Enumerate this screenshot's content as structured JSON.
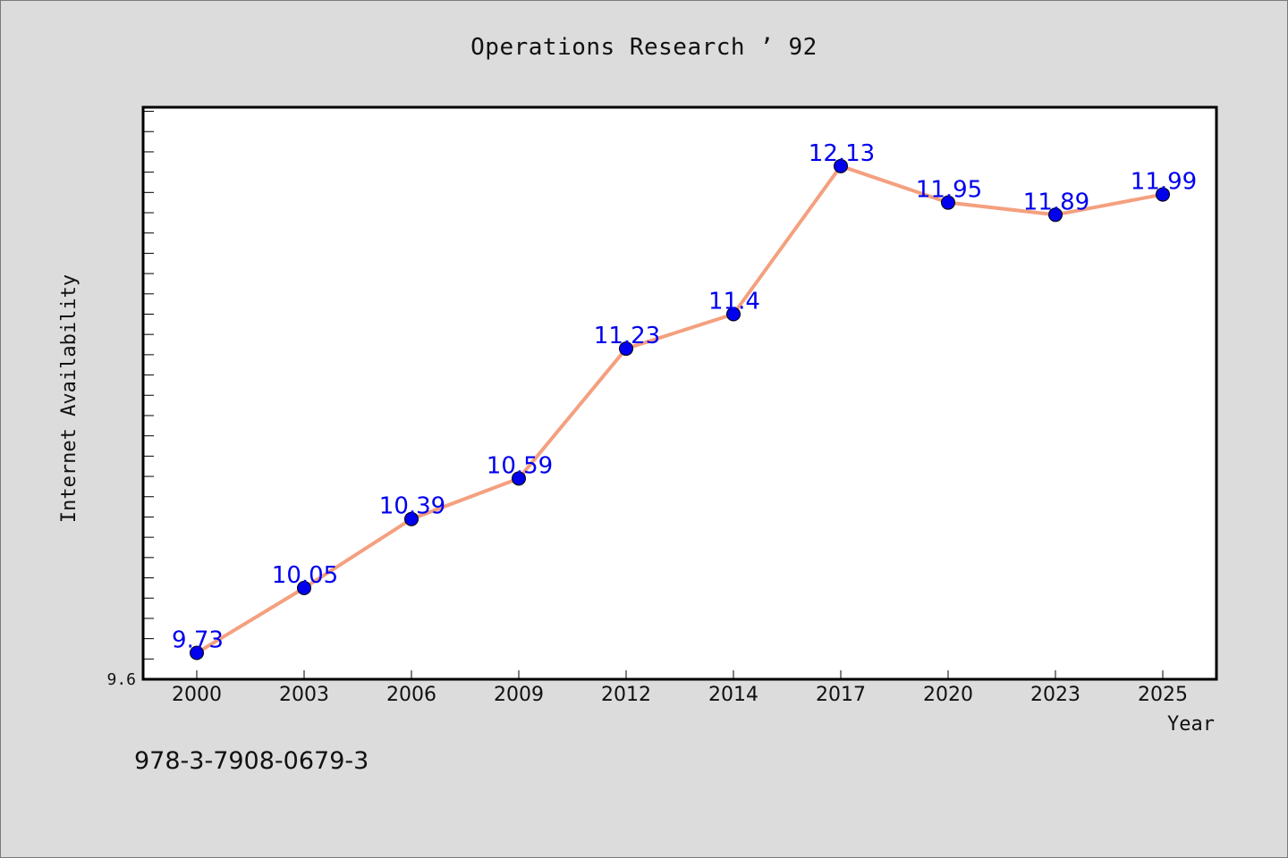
{
  "title": "Operations Research ’ 92",
  "footer_code": "978-3-7908-0679-3",
  "colors": {
    "background": "#dcdcdc",
    "plot_background": "#ffffff",
    "line": "#f4a07f",
    "marker": "#0000ee",
    "data_label": "#0000ee"
  },
  "chart_data": {
    "type": "line",
    "title": "Operations Research ’ 92",
    "xlabel": "Year",
    "ylabel": "Internet Availability",
    "categories": [
      "2000",
      "2003",
      "2006",
      "2009",
      "2012",
      "2014",
      "2017",
      "2020",
      "2023",
      "2025"
    ],
    "series": [
      {
        "values": [
          9.73,
          10.05,
          10.39,
          10.59,
          11.23,
          11.4,
          12.13,
          11.95,
          11.89,
          11.99
        ],
        "labels": [
          "9.73",
          "10.05",
          "10.39",
          "10.59",
          "11.23",
          "11.4",
          "12.13",
          "11.95",
          "11.89",
          "11.99"
        ]
      }
    ],
    "ylim": [
      9.6,
      12.42
    ],
    "yticks": [
      9.6
    ],
    "y_minor_step": 0.1,
    "grid": false,
    "legend": "none"
  }
}
